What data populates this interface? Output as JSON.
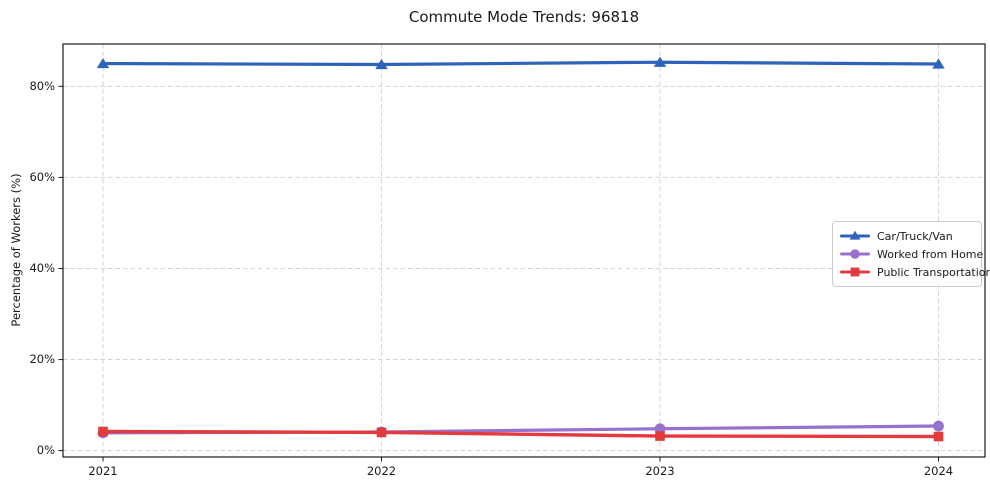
{
  "window": {
    "title": "Commute Mode Trends: 96818"
  },
  "chart_data": {
    "type": "line",
    "title": "Commute Mode Trends: 96818",
    "xlabel": "",
    "ylabel": "Percentage of Workers (%)",
    "x": [
      2021,
      2022,
      2023,
      2024
    ],
    "x_tick_labels": [
      "2021",
      "2022",
      "2023",
      "2024"
    ],
    "y_ticks": [
      0,
      20,
      40,
      60,
      80
    ],
    "y_tick_suffix": "%",
    "ylim": [
      -1.4,
      89.3
    ],
    "grid": true,
    "grid_color": "#d3d3d3",
    "spine_color": "#1a1a1a",
    "legend_position": "center right",
    "series": [
      {
        "name": "Car/Truck/Van",
        "marker": "triangle",
        "color": "#2e63bb",
        "values": [
          85.0,
          84.8,
          85.3,
          84.9
        ]
      },
      {
        "name": "Worked from Home",
        "marker": "circle",
        "color": "#9671cd",
        "values": [
          3.9,
          4.1,
          4.8,
          5.4
        ]
      },
      {
        "name": "Public Transportation",
        "marker": "square",
        "color": "#e23b3e",
        "values": [
          4.2,
          4.0,
          3.2,
          3.1
        ]
      }
    ]
  }
}
